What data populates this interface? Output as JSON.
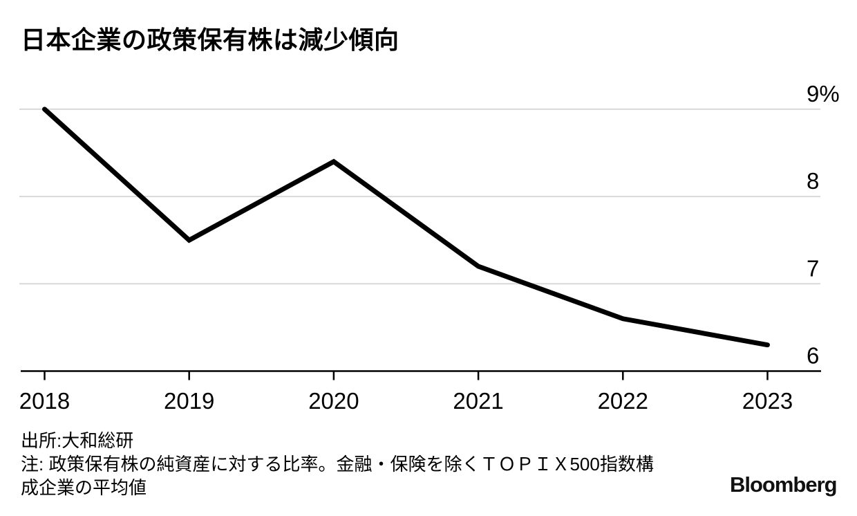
{
  "title": "日本企業の政策保有株は減少傾向",
  "chart_data": {
    "type": "line",
    "x": [
      "2018",
      "2019",
      "2020",
      "2021",
      "2022",
      "2023"
    ],
    "values": [
      9.0,
      7.5,
      8.4,
      7.2,
      6.6,
      6.3
    ],
    "unit": "%",
    "ylim": [
      6,
      9
    ],
    "yticks": [
      6,
      7,
      8,
      9
    ],
    "ytick_labels": [
      "6",
      "7",
      "8",
      "9%"
    ],
    "xlabel": "",
    "ylabel": "",
    "grid": "horizontal",
    "legend": "none",
    "line_color": "#000000",
    "grid_color": "#d9d9d9",
    "axis_color": "#000000"
  },
  "footer": {
    "source": "出所:大和総研",
    "note_lines": [
      "注: 政策保有株の純資産に対する比率。金融・保険を除くＴＯＰＩＸ500指数構",
      "成企業の平均値"
    ],
    "logo": "Bloomberg"
  }
}
